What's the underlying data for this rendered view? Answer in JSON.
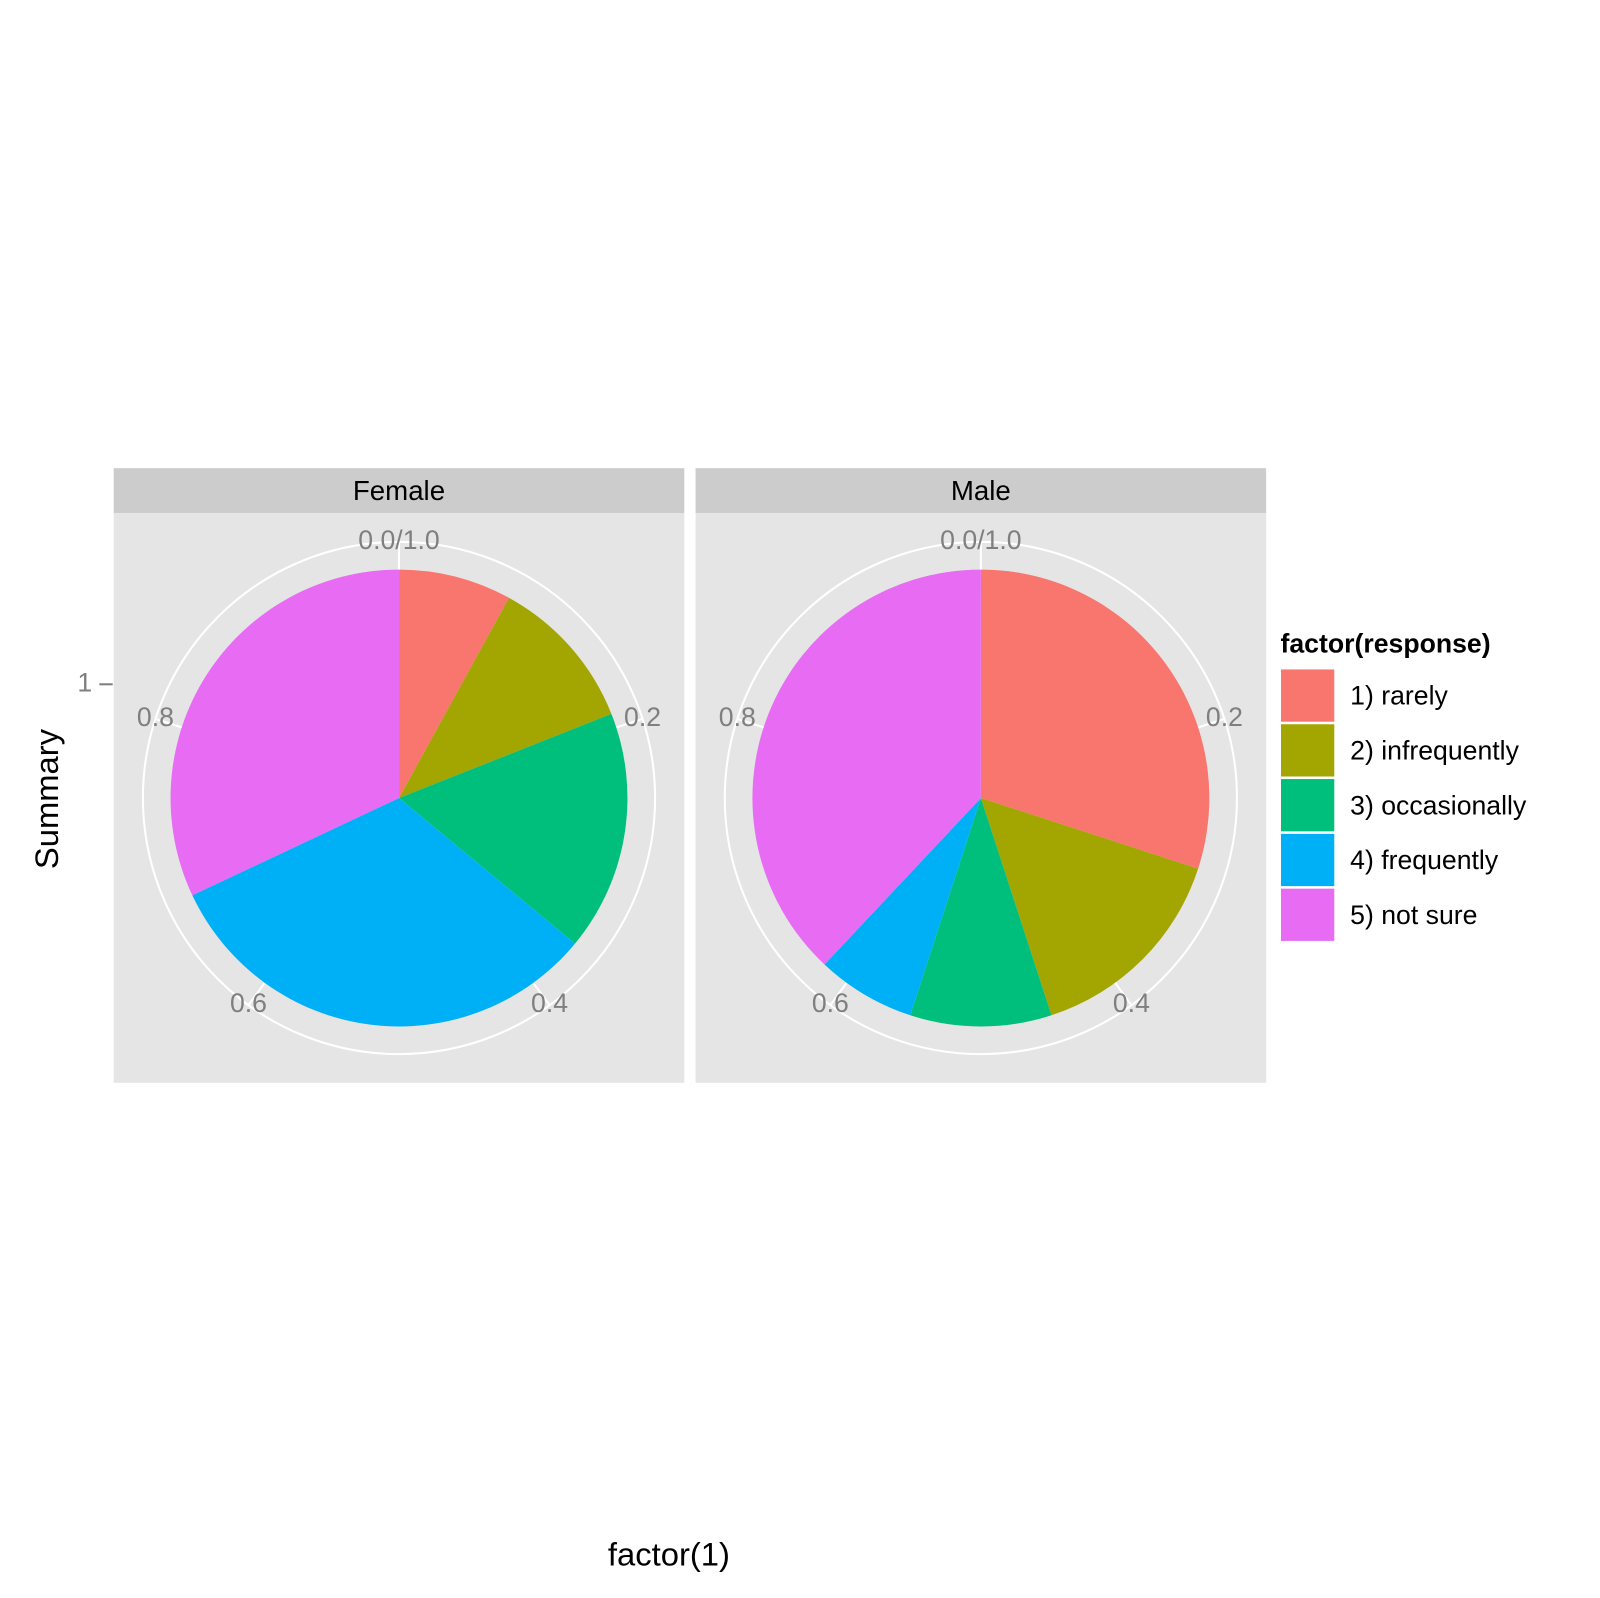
{
  "chart_data": {
    "type": "pie",
    "x_label": "factor(1)",
    "y_label": "Summary",
    "yticks": [
      1
    ],
    "thetaticks": [
      {
        "value": 0,
        "label": "0.0/1.0"
      },
      0.2,
      0.4,
      0.6,
      0.8
    ],
    "legend_title": "factor(response)",
    "categories": [
      "1) rarely",
      "2) infrequently",
      "3) occasionally",
      "4) frequently",
      "5) not sure"
    ],
    "colors": [
      "#f8766d",
      "#a3a500",
      "#00bf7d",
      "#00b0f6",
      "#e76bf3"
    ],
    "series": [
      {
        "name": "Female",
        "values": [
          0.08,
          0.11,
          0.17,
          0.32,
          0.32
        ]
      },
      {
        "name": "Male",
        "values": [
          0.3,
          0.15,
          0.1,
          0.07,
          0.38
        ]
      }
    ]
  }
}
